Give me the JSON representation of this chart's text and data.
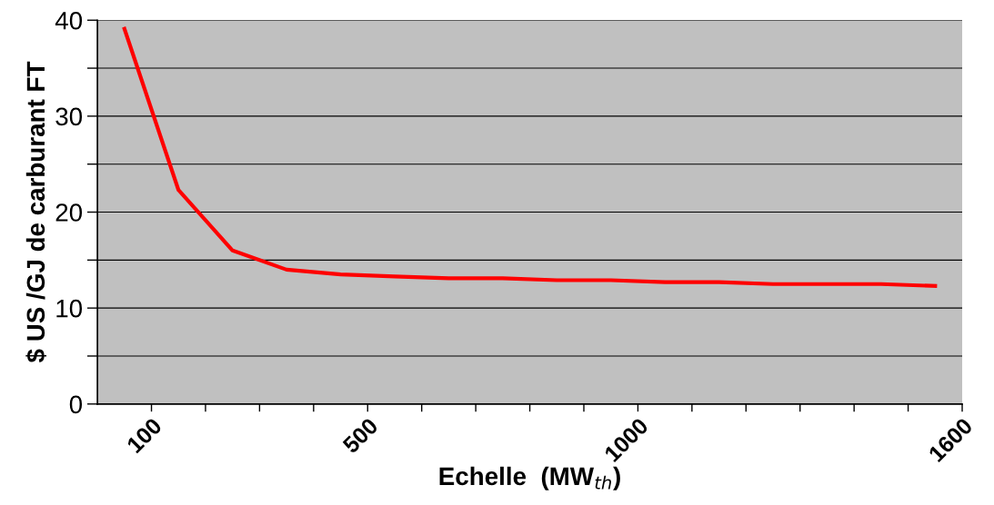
{
  "chart_data": {
    "type": "line",
    "xlabel": "Echelle  (MW$_{th}$)",
    "ylabel": "$ US /GJ de carburant FT",
    "x": [
      50,
      150,
      250,
      350,
      450,
      550,
      650,
      750,
      850,
      950,
      1050,
      1150,
      1250,
      1350,
      1450,
      1550
    ],
    "series": [
      {
        "color": "#ff0000",
        "values": [
          39.1,
          22.3,
          16.0,
          14.0,
          13.5,
          13.3,
          13.1,
          13.1,
          12.9,
          12.9,
          12.7,
          12.7,
          12.5,
          12.5,
          12.5,
          12.3
        ]
      }
    ],
    "xlim": [
      0,
      1600
    ],
    "ylim": [
      0,
      40
    ],
    "xticks": [
      100,
      {
        "value": 200,
        "label": null
      },
      {
        "value": 300,
        "label": null
      },
      {
        "value": 400,
        "label": null
      },
      500,
      {
        "value": 600,
        "label": null
      },
      {
        "value": 700,
        "label": null
      },
      {
        "value": 800,
        "label": null
      },
      {
        "value": 900,
        "label": null
      },
      1000,
      {
        "value": 1100,
        "label": null
      },
      {
        "value": 1200,
        "label": null
      },
      {
        "value": 1300,
        "label": null
      },
      {
        "value": 1400,
        "label": null
      },
      {
        "value": 1500,
        "label": null
      },
      1600
    ],
    "yticks": [
      0,
      {
        "value": 5,
        "label": null
      },
      10,
      {
        "value": 15,
        "label": null
      },
      20,
      {
        "value": 25,
        "label": null
      },
      30,
      {
        "value": 35,
        "label": null
      },
      40
    ],
    "grid": "y",
    "marker": "none",
    "line_style": "solid",
    "legend": false
  }
}
